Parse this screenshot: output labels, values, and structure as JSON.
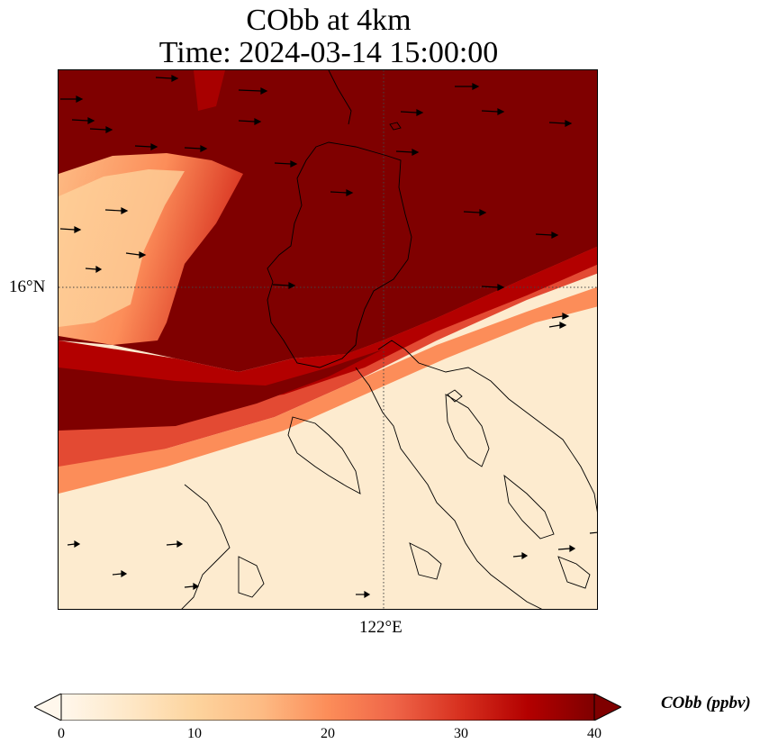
{
  "title": {
    "line1": "CObb at 4km",
    "line2": "Time: 2024-03-14 15:00:00"
  },
  "map": {
    "lat_tick_label": "16°N",
    "lon_tick_label": "122°E",
    "field": "CObb",
    "vectors": "wind arrows",
    "coastlines": true,
    "gridlines": "dotted"
  },
  "colorbar": {
    "label": "CObb (ppbv)",
    "ticks": [
      "0",
      "10",
      "20",
      "30",
      "40"
    ],
    "min": 0,
    "max": 40,
    "colormap": "OrRd",
    "extend": "both",
    "colors": [
      "#fff7ec",
      "#fee8c8",
      "#fdd49e",
      "#fdbb84",
      "#fc8d59",
      "#ef6548",
      "#d7301f",
      "#b30000",
      "#7f0000"
    ]
  }
}
